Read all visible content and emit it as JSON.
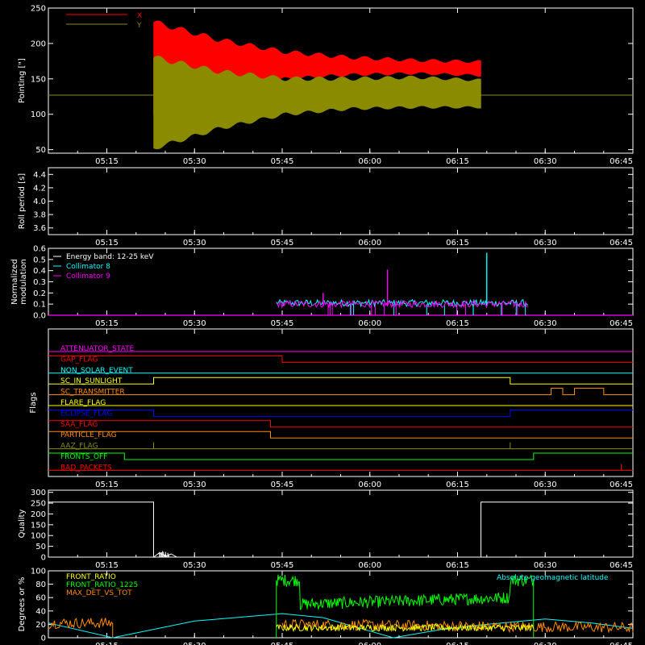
{
  "colors": {
    "background": "#000000",
    "axes": "#ffffff",
    "red": "#ff0000",
    "olive": "#8b8b00",
    "cyan": "#00ffff",
    "magenta": "#ff00ff",
    "green": "#00ff00",
    "orange": "#ff8c00",
    "yellow": "#ffff00",
    "blue": "#0000ff"
  },
  "time_axis": {
    "range": [
      "05:05",
      "06:45"
    ],
    "ticks": [
      "05:15",
      "05:30",
      "05:45",
      "06:00",
      "06:15",
      "06:30",
      "06:45"
    ]
  },
  "chart_data": [
    {
      "id": "pointing",
      "type": "line",
      "ylabel": "Pointing [\"]",
      "ylim": [
        45,
        250
      ],
      "yticks": [
        "50",
        "100",
        "150",
        "200",
        "250"
      ],
      "legend": [
        {
          "name": "X",
          "color": "#ff0000"
        },
        {
          "name": "Y",
          "color": "#8b8b00"
        }
      ],
      "legend_position": "top-left",
      "reference_line": 127,
      "series": [
        {
          "name": "X",
          "start": "05:23",
          "end": "06:19",
          "upper": [
            230,
            205,
            188,
            180,
            176,
            174
          ],
          "lower": [
            100,
            130,
            150,
            156,
            158,
            155
          ]
        },
        {
          "name": "Y",
          "start": "05:23",
          "end": "06:19",
          "upper": [
            180,
            160,
            150,
            150,
            152,
            148
          ],
          "lower": [
            52,
            80,
            100,
            108,
            110,
            110
          ]
        }
      ]
    },
    {
      "id": "roll-period",
      "type": "line",
      "ylabel": "Roll period [s]",
      "ylim": [
        3.5,
        4.5
      ],
      "yticks": [
        "3.6",
        "3.8",
        "4.0",
        "4.2",
        "4.4"
      ],
      "series": []
    },
    {
      "id": "modulation",
      "type": "line",
      "ylabel": "Normalized modulation",
      "ylim": [
        0,
        0.6
      ],
      "yticks": [
        "0.0",
        "0.1",
        "0.2",
        "0.3",
        "0.4",
        "0.5",
        "0.6"
      ],
      "legend_title": "Energy band: 12-25 keV",
      "legend": [
        {
          "name": "Collimator 8",
          "color": "#00ffff"
        },
        {
          "name": "Collimator 9",
          "color": "#ff00ff"
        }
      ],
      "legend_position": "top-left",
      "series": [
        {
          "name": "Collimator 8",
          "start": "05:44",
          "end": "06:27",
          "typical": 0.11,
          "spikes": [
            {
              "t": "06:20",
              "v": 0.56
            }
          ]
        },
        {
          "name": "Collimator 9",
          "start": "05:44",
          "end": "06:27",
          "typical": 0.1,
          "spikes": [
            {
              "t": "06:03",
              "v": 0.41
            },
            {
              "t": "05:52",
              "v": 0.2
            }
          ]
        }
      ]
    },
    {
      "id": "flags",
      "type": "line",
      "ylabel": "Flags",
      "flags": [
        {
          "name": "ATTENUATOR_STATE",
          "color": "#ff00ff",
          "steps": [
            [
              "05:05",
              0
            ],
            [
              "06:45",
              0
            ]
          ]
        },
        {
          "name": "GAP_FLAG",
          "color": "#ff0000",
          "steps": [
            [
              "05:05",
              1
            ],
            [
              "05:45",
              0
            ],
            [
              "06:45",
              0
            ]
          ]
        },
        {
          "name": "NON_SOLAR_EVENT",
          "color": "#00ffff",
          "steps": [
            [
              "05:05",
              0
            ],
            [
              "06:45",
              0
            ]
          ]
        },
        {
          "name": "SC_IN_SUNLIGHT",
          "color": "#ffff00",
          "steps": [
            [
              "05:05",
              0
            ],
            [
              "05:23",
              1
            ],
            [
              "06:24",
              0
            ],
            [
              "06:45",
              0
            ]
          ]
        },
        {
          "name": "SC_TRANSMITTER",
          "color": "#ff8c00",
          "steps": [
            [
              "05:05",
              0
            ],
            [
              "06:31",
              1
            ],
            [
              "06:33",
              0
            ],
            [
              "06:35",
              1
            ],
            [
              "06:40",
              0
            ],
            [
              "06:45",
              0
            ]
          ]
        },
        {
          "name": "FLARE_FLAG",
          "color": "#ffff00",
          "steps": [
            [
              "05:05",
              0
            ],
            [
              "06:45",
              0
            ]
          ]
        },
        {
          "name": "ECLIPSE_FLAG",
          "color": "#0000ff",
          "steps": [
            [
              "05:05",
              1
            ],
            [
              "05:23",
              0
            ],
            [
              "06:24",
              1
            ],
            [
              "06:45",
              1
            ]
          ]
        },
        {
          "name": "SAA_FLAG",
          "color": "#ff0000",
          "steps": [
            [
              "05:05",
              1
            ],
            [
              "05:43",
              0
            ],
            [
              "06:45",
              0
            ]
          ]
        },
        {
          "name": "PARTICLE_FLAG",
          "color": "#ff8c00",
          "steps": [
            [
              "05:05",
              1
            ],
            [
              "05:43",
              0
            ],
            [
              "06:45",
              0
            ]
          ]
        },
        {
          "name": "AAZ_FLAG",
          "color": "#8b8b00",
          "steps": [
            [
              "05:05",
              0
            ],
            [
              "05:23",
              1
            ],
            [
              "05:23",
              0
            ],
            [
              "06:24",
              1
            ],
            [
              "06:24",
              0
            ],
            [
              "06:45",
              0
            ]
          ]
        },
        {
          "name": "FRONTS_OFF",
          "color": "#00ff00",
          "steps": [
            [
              "05:05",
              1
            ],
            [
              "05:18",
              0
            ],
            [
              "06:28",
              1
            ],
            [
              "06:45",
              1
            ]
          ]
        },
        {
          "name": "BAD_PACKETS",
          "color": "#ff0000",
          "steps": [
            [
              "05:05",
              0
            ],
            [
              "06:43",
              1
            ],
            [
              "06:43",
              0
            ],
            [
              "06:45",
              0
            ]
          ]
        }
      ]
    },
    {
      "id": "quality",
      "type": "line",
      "ylabel": "Quality",
      "ylim": [
        0,
        310
      ],
      "yticks": [
        "0",
        "50",
        "100",
        "150",
        "200",
        "250",
        "300"
      ],
      "series": [
        {
          "name": "Quality",
          "color": "#ffffff",
          "points": [
            [
              "05:05",
              255
            ],
            [
              "05:23",
              255
            ],
            [
              "05:23",
              0
            ],
            [
              "05:24",
              20
            ],
            [
              "05:25",
              5
            ],
            [
              "05:26",
              15
            ],
            [
              "05:27",
              0
            ],
            [
              "06:19",
              0
            ],
            [
              "06:19",
              255
            ],
            [
              "06:45",
              255
            ]
          ]
        }
      ]
    },
    {
      "id": "geomagnetic",
      "type": "line",
      "ylabel": "Degrees or %",
      "ylim": [
        0,
        100
      ],
      "yticks": [
        "0",
        "20",
        "40",
        "60",
        "80",
        "100"
      ],
      "legend": [
        {
          "name": "FRONT_RATIO",
          "color": "#ffff00"
        },
        {
          "name": "FRONT_RATIO_1225",
          "color": "#00ff00"
        },
        {
          "name": "MAX_DET_VS_TOT",
          "color": "#ff8c00"
        }
      ],
      "annotation": {
        "text": "Absolute geomagnetic latitude",
        "color": "#00ffff"
      },
      "series": [
        {
          "name": "Absolute geomagnetic latitude",
          "color": "#00ffff",
          "points": [
            [
              "05:05",
              22
            ],
            [
              "05:16",
              0
            ],
            [
              "05:30",
              25
            ],
            [
              "05:45",
              36
            ],
            [
              "05:52",
              30
            ],
            [
              "06:00",
              10
            ],
            [
              "06:04",
              0
            ],
            [
              "06:12",
              12
            ],
            [
              "06:20",
              20
            ],
            [
              "06:30",
              28
            ],
            [
              "06:38",
              22
            ],
            [
              "06:45",
              14
            ]
          ]
        },
        {
          "name": "FRONT_RATIO_1225",
          "color": "#00ff00",
          "start": "05:44",
          "end": "06:28",
          "levels": [
            [
              "05:44",
              86
            ],
            [
              "05:48",
              50
            ],
            [
              "06:24",
              60
            ],
            [
              "06:26",
              88
            ],
            [
              "06:28",
              88
            ]
          ]
        },
        {
          "name": "FRONT_RATIO",
          "color": "#ffff00",
          "start": "05:44",
          "end": "06:28",
          "levels": [
            [
              "05:44",
              15
            ],
            [
              "06:28",
              14
            ]
          ]
        },
        {
          "name": "MAX_DET_VS_TOT",
          "color": "#ff8c00",
          "segments": [
            [
              [
                "05:05",
                22
              ],
              [
                "05:16",
                22
              ]
            ],
            [
              [
                "05:45",
                20
              ],
              [
                "06:45",
                15
              ]
            ]
          ]
        }
      ]
    }
  ]
}
